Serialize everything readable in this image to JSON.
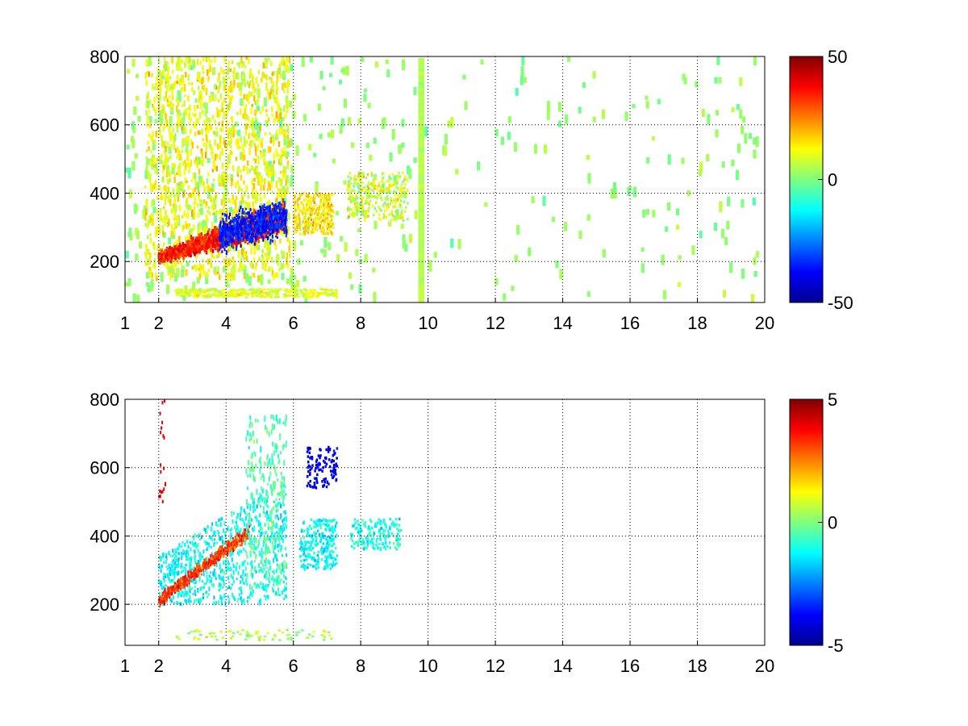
{
  "chart_data": [
    {
      "type": "heatmap",
      "title": "",
      "xlabel": "",
      "ylabel": "",
      "xlim": [
        1,
        20
      ],
      "ylim": [
        80,
        800
      ],
      "x_ticks": [
        1,
        2,
        4,
        6,
        8,
        10,
        12,
        14,
        16,
        18,
        20
      ],
      "x_tick_labels": [
        "1",
        "2",
        "4",
        "6",
        "8",
        "10",
        "12",
        "14",
        "16",
        "18",
        "20"
      ],
      "y_ticks": [
        200,
        400,
        600,
        800
      ],
      "y_tick_labels": [
        "200",
        "400",
        "600",
        "800"
      ],
      "grid": true,
      "colormap": "jet",
      "clim": [
        -50,
        50
      ],
      "colorbar_ticks": [
        50,
        0,
        -50
      ],
      "colorbar_tick_labels": [
        "50",
        "0",
        "-50"
      ],
      "features": [
        {
          "description_type": "ridge",
          "x_range": [
            2,
            5.8
          ],
          "y_from": 210,
          "y_to": 330,
          "value": 40
        },
        {
          "description_type": "band",
          "x_range": [
            4,
            5.8
          ],
          "y_center": 280,
          "value": -40
        },
        {
          "description_type": "cluster",
          "x": 8,
          "y": 370,
          "value": 25
        },
        {
          "description_type": "column",
          "x": 9.8,
          "value": 5
        }
      ]
    },
    {
      "type": "heatmap",
      "title": "",
      "xlabel": "",
      "ylabel": "",
      "xlim": [
        1,
        20
      ],
      "ylim": [
        80,
        800
      ],
      "x_ticks": [
        1,
        2,
        4,
        6,
        8,
        10,
        12,
        14,
        16,
        18,
        20
      ],
      "x_tick_labels": [
        "1",
        "2",
        "4",
        "6",
        "8",
        "10",
        "12",
        "14",
        "16",
        "18",
        "20"
      ],
      "y_ticks": [
        200,
        400,
        600,
        800
      ],
      "y_tick_labels": [
        "200",
        "400",
        "600",
        "800"
      ],
      "grid": true,
      "colormap": "jet",
      "clim": [
        -5,
        5
      ],
      "colorbar_ticks": [
        5,
        0,
        -5
      ],
      "colorbar_tick_labels": [
        "5",
        "0",
        "-5"
      ],
      "features": [
        {
          "description_type": "ridge",
          "x_range": [
            2,
            4.6
          ],
          "y_from": 210,
          "y_to": 420,
          "value": 4
        },
        {
          "description_type": "cloud",
          "x_range": [
            2,
            5.8
          ],
          "y_range": [
            200,
            400
          ],
          "value": -1.5
        },
        {
          "description_type": "cluster",
          "x": 7,
          "y": 600,
          "value": -4.5
        },
        {
          "description_type": "cluster",
          "x": 8.5,
          "y": 390,
          "value": -1
        }
      ]
    }
  ]
}
